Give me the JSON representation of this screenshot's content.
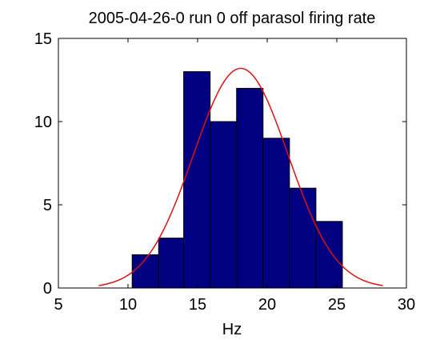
{
  "chart_data": {
    "type": "bar",
    "title": "2005-04-26-0 run 0 off parasol firing rate",
    "xlabel": "Hz",
    "ylabel": "",
    "xlim": [
      5,
      30
    ],
    "ylim": [
      0,
      15
    ],
    "xticks": [
      5,
      10,
      15,
      20,
      25,
      30
    ],
    "yticks": [
      0,
      5,
      10,
      15
    ],
    "grid": false,
    "legend": "none",
    "bins": [
      {
        "x0": 10.3,
        "x1": 12.2,
        "count": 2
      },
      {
        "x0": 12.2,
        "x1": 14.0,
        "count": 3
      },
      {
        "x0": 14.0,
        "x1": 15.9,
        "count": 13
      },
      {
        "x0": 15.9,
        "x1": 17.8,
        "count": 10
      },
      {
        "x0": 17.8,
        "x1": 19.7,
        "count": 12
      },
      {
        "x0": 19.7,
        "x1": 21.6,
        "count": 9
      },
      {
        "x0": 21.6,
        "x1": 23.5,
        "count": 6
      },
      {
        "x0": 23.5,
        "x1": 25.4,
        "count": 4
      }
    ],
    "fit_curve": {
      "type": "gaussian",
      "mean": 18.1,
      "sigma": 3.4,
      "peak": 13.2,
      "x_range": [
        7.9,
        28.3
      ]
    },
    "colors": {
      "bar_fill": "#000080",
      "bar_edge": "#000000",
      "curve": "#e01010",
      "axes": "#000000",
      "background": "#ffffff"
    }
  }
}
